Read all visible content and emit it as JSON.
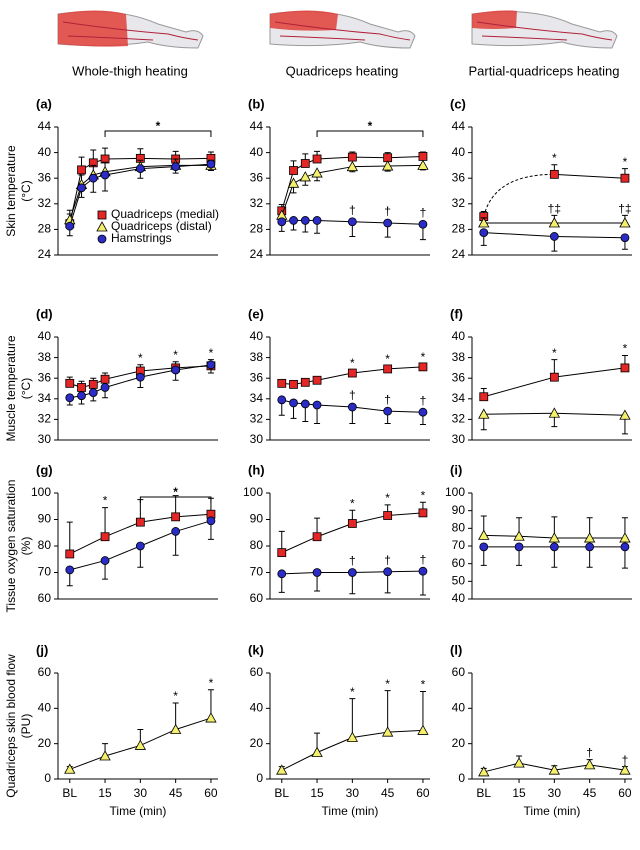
{
  "headers": [
    "Whole-thigh heating",
    "Quadriceps heating",
    "Partial-quadriceps heating"
  ],
  "chart_data": [
    {
      "type": "line",
      "label": "(a)",
      "ylabel": [
        "Skin temperature",
        "(°C)"
      ],
      "x": [
        0,
        5,
        10,
        15,
        30,
        45,
        60
      ],
      "xlim": [
        -5,
        63
      ],
      "ylim": [
        24,
        44
      ],
      "yticks": [
        24,
        28,
        32,
        36,
        40,
        44
      ],
      "bracket": {
        "from": 15,
        "to": 60,
        "label": "*"
      },
      "legend": "lower right",
      "series": [
        {
          "name": "Quadriceps (medial)",
          "color": "#e32626",
          "marker": "square",
          "values": [
            28.9,
            37.3,
            38.4,
            39.0,
            39.1,
            39.0,
            39.1
          ],
          "errors": [
            1.5,
            2,
            2,
            1.7,
            1.5,
            1.2,
            1
          ],
          "error_dir": "up"
        },
        {
          "name": "Quadriceps (distal)",
          "color": "#f4ef6c",
          "marker": "triangle",
          "values": [
            29.5,
            35,
            36.5,
            37,
            37.8,
            38,
            38
          ],
          "errors": [
            1.5,
            1.5,
            1.5,
            1.5,
            1,
            1,
            0.8
          ],
          "error_dir": "up"
        },
        {
          "name": "Hamstrings",
          "color": "#2b2bc6",
          "marker": "circle",
          "values": [
            28.5,
            34.5,
            36,
            36.5,
            37.5,
            37.8,
            38.2
          ],
          "errors": [
            1.5,
            1.5,
            2.2,
            2.5,
            1.5,
            1,
            1
          ],
          "error_dir": "down"
        }
      ]
    },
    {
      "type": "line",
      "label": "(b)",
      "x": [
        0,
        5,
        10,
        15,
        30,
        45,
        60
      ],
      "xlim": [
        -5,
        63
      ],
      "ylim": [
        24,
        44
      ],
      "yticks": [
        24,
        28,
        32,
        36,
        40,
        44
      ],
      "bracket": {
        "from": 15,
        "to": 60,
        "label": "*"
      },
      "series": [
        {
          "color": "#e32626",
          "marker": "square",
          "values": [
            30.9,
            37.2,
            38.3,
            39.0,
            39.3,
            39.2,
            39.4
          ],
          "errors": [
            1,
            1.5,
            1.5,
            1.2,
            0.8,
            0.8,
            0.7
          ],
          "error_dir": "up"
        },
        {
          "color": "#f4ef6c",
          "marker": "triangle",
          "values": [
            30.2,
            35.2,
            36.2,
            36.8,
            37.8,
            37.9,
            38
          ],
          "errors": [
            1,
            1.5,
            1.3,
            1.2,
            0.8,
            0.8,
            0.7
          ],
          "error_dir": "down"
        },
        {
          "color": "#2b2bc6",
          "marker": "circle",
          "values": [
            29.2,
            29.4,
            29.4,
            29.4,
            29.2,
            29,
            28.8
          ],
          "errors": [
            1.5,
            1.5,
            1.8,
            2,
            2.3,
            2.2,
            2.4
          ],
          "error_dir": "down",
          "sig": [
            null,
            null,
            null,
            null,
            "†",
            "†",
            "†"
          ]
        }
      ]
    },
    {
      "type": "line",
      "label": "(c)",
      "x": [
        0,
        30,
        60
      ],
      "xlim": [
        -5,
        63
      ],
      "ylim": [
        24,
        44
      ],
      "yticks": [
        24,
        28,
        32,
        36,
        40,
        44
      ],
      "series": [
        {
          "color": "#e32626",
          "marker": "square",
          "values": [
            30,
            36.6,
            36
          ],
          "errors": [
            0.8,
            1.5,
            1.5
          ],
          "error_dir": "up",
          "sig": [
            null,
            "*",
            "*"
          ],
          "dashed_first": true
        },
        {
          "color": "#f4ef6c",
          "marker": "triangle",
          "values": [
            29,
            29,
            29
          ],
          "errors": [
            0.8,
            1.2,
            1.2
          ],
          "error_dir": "up",
          "sig": [
            null,
            "†‡",
            "†‡"
          ]
        },
        {
          "color": "#2b2bc6",
          "marker": "circle",
          "values": [
            27.5,
            26.9,
            26.7
          ],
          "errors": [
            2,
            2.3,
            1.8
          ],
          "error_dir": "down"
        }
      ]
    },
    {
      "type": "line",
      "label": "(d)",
      "ylabel": [
        "Muscle temperature",
        "(°C)"
      ],
      "x": [
        0,
        5,
        10,
        15,
        30,
        45,
        60
      ],
      "xlim": [
        -5,
        63
      ],
      "ylim": [
        30,
        40
      ],
      "yticks": [
        30,
        32,
        34,
        36,
        38,
        40
      ],
      "series": [
        {
          "color": "#e32626",
          "marker": "square",
          "values": [
            35.5,
            35.1,
            35.4,
            35.9,
            36.7,
            37.0,
            37.2
          ],
          "errors": [
            0.6,
            0.6,
            0.6,
            0.6,
            0.6,
            0.6,
            0.6
          ],
          "error_dir": "up",
          "sig": [
            null,
            null,
            null,
            null,
            "*",
            "*",
            "*"
          ]
        },
        {
          "color": "#2b2bc6",
          "marker": "circle",
          "values": [
            34.1,
            34.3,
            34.6,
            35.1,
            36.1,
            36.8,
            37.3
          ],
          "errors": [
            0.7,
            0.8,
            0.8,
            1,
            1,
            1,
            0.8
          ],
          "error_dir": "down"
        }
      ]
    },
    {
      "type": "line",
      "label": "(e)",
      "x": [
        0,
        5,
        10,
        15,
        30,
        45,
        60
      ],
      "xlim": [
        -5,
        63
      ],
      "ylim": [
        30,
        40
      ],
      "yticks": [
        30,
        32,
        34,
        36,
        38,
        40
      ],
      "series": [
        {
          "color": "#e32626",
          "marker": "square",
          "values": [
            35.5,
            35.4,
            35.6,
            35.8,
            36.5,
            36.9,
            37.1
          ],
          "errors": [
            0.3,
            0.3,
            0.3,
            0.3,
            0.3,
            0.3,
            0.3
          ],
          "error_dir": "up",
          "sig": [
            null,
            null,
            null,
            null,
            "*",
            "*",
            "*"
          ]
        },
        {
          "color": "#2b2bc6",
          "marker": "circle",
          "values": [
            33.9,
            33.6,
            33.5,
            33.4,
            33.2,
            32.8,
            32.7
          ],
          "errors": [
            1.5,
            1.5,
            1.7,
            1.8,
            1.6,
            1.2,
            1.2
          ],
          "error_dir": "down",
          "sig": [
            null,
            null,
            null,
            null,
            "†",
            "†",
            "†"
          ]
        }
      ]
    },
    {
      "type": "line",
      "label": "(f)",
      "x": [
        0,
        30,
        60
      ],
      "xlim": [
        -5,
        63
      ],
      "ylim": [
        30,
        40
      ],
      "yticks": [
        30,
        32,
        34,
        36,
        38,
        40
      ],
      "series": [
        {
          "color": "#e32626",
          "marker": "square",
          "values": [
            34.2,
            36.1,
            37
          ],
          "errors": [
            0.8,
            1.7,
            1.2
          ],
          "error_dir": "up",
          "sig": [
            null,
            "*",
            "*"
          ]
        },
        {
          "color": "#f4ef6c",
          "marker": "triangle",
          "values": [
            32.5,
            32.6,
            32.4
          ],
          "errors": [
            1.5,
            1.3,
            1.8
          ],
          "error_dir": "down"
        }
      ]
    },
    {
      "type": "line",
      "label": "(g)",
      "ylabel": [
        "Tissue oxygen saturation",
        "(%)"
      ],
      "x": [
        0,
        15,
        30,
        45,
        60
      ],
      "xlim": [
        -5,
        63
      ],
      "ylim": [
        60,
        100
      ],
      "yticks": [
        60,
        70,
        80,
        90,
        100
      ],
      "bracket": {
        "from": 30,
        "to": 60,
        "label": "*"
      },
      "series": [
        {
          "color": "#e32626",
          "marker": "square",
          "values": [
            77,
            83.5,
            89,
            91,
            92
          ],
          "errors": [
            12,
            11,
            8.5,
            8,
            6
          ],
          "error_dir": "up",
          "sig": [
            null,
            "*",
            null,
            null,
            null
          ]
        },
        {
          "color": "#2b2bc6",
          "marker": "circle",
          "values": [
            71,
            74.5,
            80,
            85.5,
            89.5
          ],
          "errors": [
            6,
            7,
            8,
            9,
            7
          ],
          "error_dir": "down"
        }
      ]
    },
    {
      "type": "line",
      "label": "(h)",
      "x": [
        0,
        15,
        30,
        45,
        60
      ],
      "xlim": [
        -5,
        63
      ],
      "ylim": [
        60,
        100
      ],
      "yticks": [
        60,
        70,
        80,
        90,
        100
      ],
      "series": [
        {
          "color": "#e32626",
          "marker": "square",
          "values": [
            77.5,
            83.5,
            88.5,
            91.5,
            92.5
          ],
          "errors": [
            8,
            7,
            5,
            4,
            4
          ],
          "error_dir": "up",
          "sig": [
            null,
            null,
            "*",
            "*",
            "*"
          ]
        },
        {
          "color": "#2b2bc6",
          "marker": "circle",
          "values": [
            69.5,
            70,
            70,
            70.3,
            70.5
          ],
          "errors": [
            7,
            7,
            8,
            8,
            9
          ],
          "error_dir": "down",
          "sig": [
            null,
            null,
            "†",
            "†",
            "†"
          ]
        }
      ]
    },
    {
      "type": "line",
      "label": "(i)",
      "x": [
        0,
        15,
        30,
        45,
        60
      ],
      "xlim": [
        -5,
        63
      ],
      "ylim": [
        40,
        100
      ],
      "yticks": [
        40,
        50,
        60,
        70,
        80,
        90,
        100
      ],
      "series": [
        {
          "color": "#f4ef6c",
          "marker": "triangle",
          "values": [
            76,
            75.5,
            74.5,
            74.5,
            74.5
          ],
          "errors": [
            11,
            10.5,
            12,
            11.5,
            11.5
          ],
          "error_dir": "up"
        },
        {
          "color": "#2b2bc6",
          "marker": "circle",
          "values": [
            69.5,
            69.5,
            69.5,
            69.5,
            69.5
          ],
          "errors": [
            10.5,
            10.5,
            11.5,
            11.5,
            12
          ],
          "error_dir": "down"
        }
      ]
    },
    {
      "type": "line",
      "label": "(j)",
      "ylabel": [
        "Quadriceps skin blood flow",
        "(PU)"
      ],
      "xlabel": "Time (min)",
      "x": [
        0,
        15,
        30,
        45,
        60
      ],
      "xlim": [
        -5,
        63
      ],
      "xticks": [
        {
          "value": 0,
          "label": "BL"
        },
        15,
        30,
        45,
        60
      ],
      "ylim": [
        0,
        60
      ],
      "yticks": [
        0,
        20,
        40,
        60
      ],
      "series": [
        {
          "color": "#f4ef6c",
          "marker": "triangle",
          "values": [
            5.5,
            13,
            19,
            28,
            34.5
          ],
          "errors": [
            1.5,
            7,
            9,
            15,
            16
          ],
          "error_dir": "up",
          "sig": [
            null,
            null,
            null,
            "*",
            "*"
          ]
        }
      ]
    },
    {
      "type": "line",
      "label": "(k)",
      "xlabel": "Time (min)",
      "x": [
        0,
        15,
        30,
        45,
        60
      ],
      "xlim": [
        -5,
        63
      ],
      "xticks": [
        {
          "value": 0,
          "label": "BL"
        },
        15,
        30,
        45,
        60
      ],
      "ylim": [
        0,
        60
      ],
      "yticks": [
        0,
        20,
        40,
        60
      ],
      "series": [
        {
          "color": "#f4ef6c",
          "marker": "triangle",
          "values": [
            5,
            15,
            23.5,
            26.5,
            27.5
          ],
          "errors": [
            2,
            11,
            22,
            23.5,
            22
          ],
          "error_dir": "up",
          "sig": [
            null,
            null,
            "*",
            "*",
            "*"
          ]
        }
      ]
    },
    {
      "type": "line",
      "label": "(l)",
      "xlabel": "Time (min)",
      "x": [
        0,
        15,
        30,
        45,
        60
      ],
      "xlim": [
        -5,
        63
      ],
      "xticks": [
        {
          "value": 0,
          "label": "BL"
        },
        15,
        30,
        45,
        60
      ],
      "ylim": [
        0,
        60
      ],
      "yticks": [
        0,
        20,
        40,
        60
      ],
      "series": [
        {
          "color": "#f4ef6c",
          "marker": "triangle",
          "values": [
            4,
            9,
            5,
            8,
            5
          ],
          "errors": [
            2,
            4,
            2.5,
            3,
            2
          ],
          "error_dir": "up",
          "sig": [
            null,
            null,
            null,
            "†",
            "†"
          ]
        }
      ]
    }
  ]
}
